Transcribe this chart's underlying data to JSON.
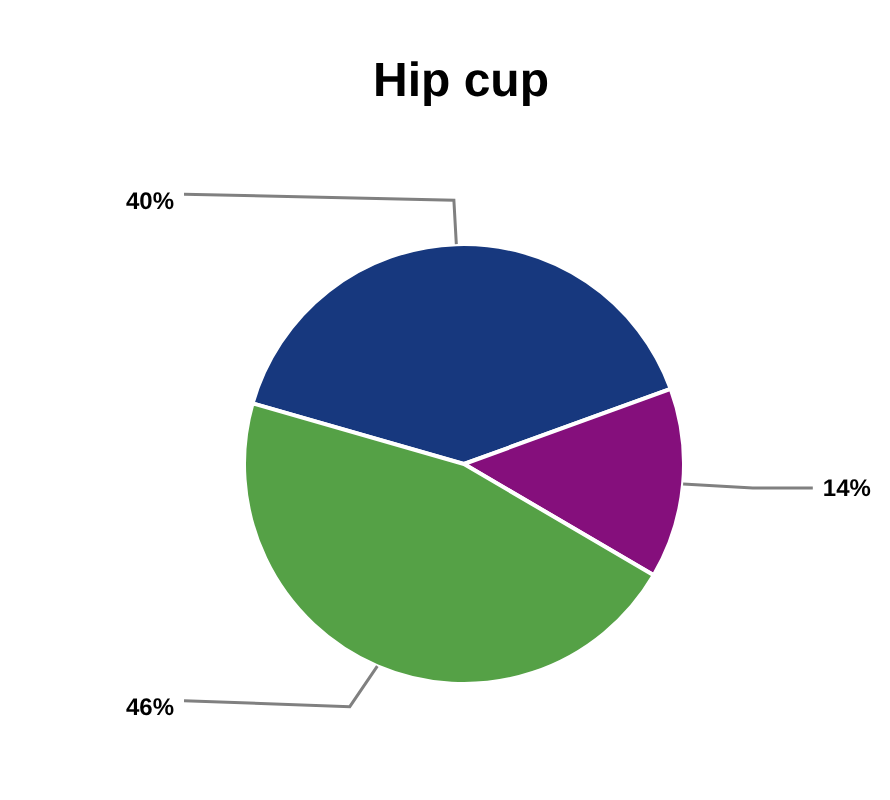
{
  "chart_data": {
    "type": "pie",
    "title": "Hip cup",
    "categories": [
      null,
      null,
      null
    ],
    "values": [
      40,
      14,
      46
    ],
    "colors": [
      "#17387e",
      "#850f7c",
      "#55a146"
    ],
    "value_labels": [
      "40%",
      "14%",
      "46%"
    ]
  }
}
